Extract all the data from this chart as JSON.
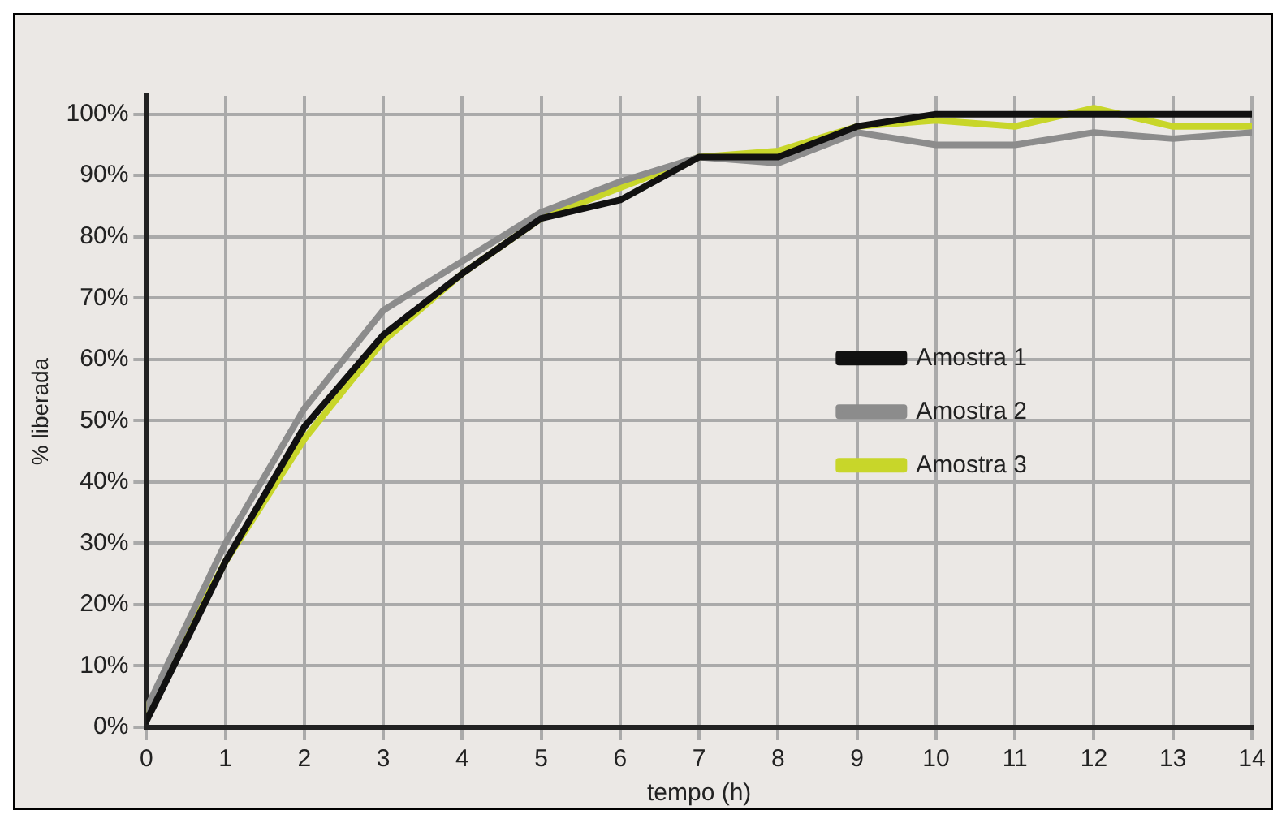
{
  "chart_data": {
    "type": "line",
    "xlabel": "tempo (h)",
    "ylabel": "% liberada",
    "x": [
      0,
      1,
      2,
      3,
      4,
      5,
      6,
      7,
      8,
      9,
      10,
      11,
      12,
      13,
      14
    ],
    "series": [
      {
        "name": "Amostra 1",
        "color": "#111111",
        "values": [
          1,
          27,
          49,
          64,
          74,
          83,
          86,
          93,
          93,
          98,
          100,
          100,
          100,
          100,
          100
        ]
      },
      {
        "name": "Amostra 2",
        "color": "#8c8c8c",
        "values": [
          3,
          30,
          52,
          68,
          76,
          84,
          89,
          93,
          92,
          97,
          95,
          95,
          97,
          96,
          97
        ]
      },
      {
        "name": "Amostra 3",
        "color": "#c8d62a",
        "values": [
          3,
          27,
          47,
          63,
          74,
          83,
          88,
          93,
          94,
          98,
          99,
          98,
          101,
          98,
          98
        ]
      }
    ],
    "xlim": [
      0,
      14
    ],
    "xticks": [
      0,
      1,
      2,
      3,
      4,
      5,
      6,
      7,
      8,
      9,
      10,
      11,
      12,
      13,
      14
    ],
    "ylim": [
      0,
      103
    ],
    "yticks": [
      {
        "value": 0,
        "label": "0%"
      },
      {
        "value": 10,
        "label": "10%"
      },
      {
        "value": 20,
        "label": "20%"
      },
      {
        "value": 30,
        "label": "30%"
      },
      {
        "value": 40,
        "label": "40%"
      },
      {
        "value": 50,
        "label": "50%"
      },
      {
        "value": 60,
        "label": "60%"
      },
      {
        "value": 70,
        "label": "70%"
      },
      {
        "value": 80,
        "label": "80%"
      },
      {
        "value": 90,
        "label": "90%"
      },
      {
        "value": 100,
        "label": "100%"
      }
    ],
    "grid": true,
    "legend": "right",
    "marker": "none",
    "line_style": "solid"
  }
}
